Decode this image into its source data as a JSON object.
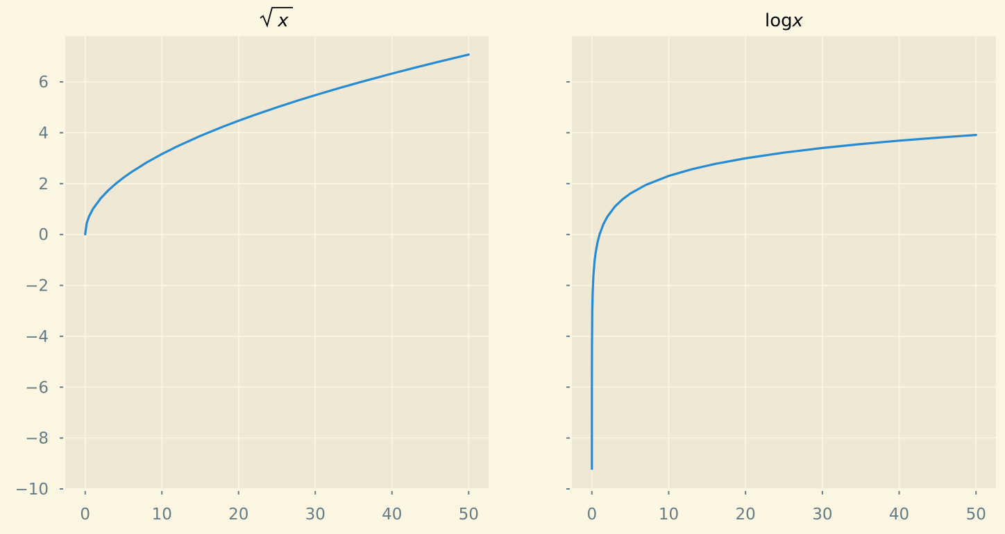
{
  "figure": {
    "background": "#fdf6e3"
  },
  "chart_data": [
    {
      "type": "line",
      "title_base": "",
      "title_var": "x",
      "title_symbol": "sqrt",
      "xlim": [
        -2.6,
        52.6
      ],
      "ylim": [
        -10,
        7.8
      ],
      "x_ticks": [
        0,
        10,
        20,
        30,
        40,
        50
      ],
      "x_tick_labels": [
        "0",
        "10",
        "20",
        "30",
        "40",
        "50"
      ],
      "y_ticks": [
        -10,
        -8,
        -6,
        -4,
        -2,
        0,
        2,
        4,
        6
      ],
      "y_tick_labels": [
        "−10",
        "−8",
        "−6",
        "−4",
        "−2",
        "0",
        "2",
        "4",
        "6"
      ],
      "grid": true,
      "axes_facecolor": "#eee8d5",
      "grid_color": "#fdf6e3",
      "series": [
        {
          "color": "#268bd2",
          "x": [
            0.0001,
            0.2,
            0.5,
            1,
            2,
            3,
            4,
            5,
            6,
            8,
            10,
            12,
            15,
            18,
            20,
            22,
            25,
            28,
            30,
            33,
            36,
            40,
            43,
            46,
            50
          ],
          "y": [
            0.01,
            0.447,
            0.707,
            1.0,
            1.414,
            1.732,
            2.0,
            2.236,
            2.449,
            2.828,
            3.162,
            3.464,
            3.873,
            4.243,
            4.472,
            4.69,
            5.0,
            5.292,
            5.477,
            5.745,
            6.0,
            6.325,
            6.557,
            6.782,
            7.071
          ]
        }
      ]
    },
    {
      "type": "line",
      "title_base": "log",
      "title_var": "x",
      "title_symbol": "",
      "xlim": [
        -2.6,
        52.6
      ],
      "ylim": [
        -10,
        7.8
      ],
      "x_ticks": [
        0,
        10,
        20,
        30,
        40,
        50
      ],
      "x_tick_labels": [
        "0",
        "10",
        "20",
        "30",
        "40",
        "50"
      ],
      "y_ticks": [
        -10,
        -8,
        -6,
        -4,
        -2,
        0,
        2,
        4,
        6
      ],
      "y_tick_labels": [],
      "grid": true,
      "axes_facecolor": "#eee8d5",
      "grid_color": "#fdf6e3",
      "series": [
        {
          "color": "#268bd2",
          "x": [
            0.0001,
            0.0005,
            0.002,
            0.01,
            0.05,
            0.1,
            0.2,
            0.35,
            0.5,
            0.75,
            1,
            1.5,
            2,
            3,
            4,
            5,
            7,
            10,
            13,
            16,
            20,
            25,
            30,
            35,
            40,
            45,
            50
          ],
          "y": [
            -9.21,
            -7.6,
            -6.215,
            -4.605,
            -2.996,
            -2.303,
            -1.609,
            -1.05,
            -0.693,
            -0.288,
            0.0,
            0.405,
            0.693,
            1.099,
            1.386,
            1.609,
            1.946,
            2.303,
            2.565,
            2.773,
            2.996,
            3.219,
            3.401,
            3.555,
            3.689,
            3.807,
            3.912
          ]
        }
      ]
    }
  ]
}
